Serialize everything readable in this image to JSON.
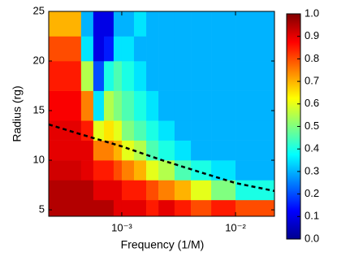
{
  "chart_data": {
    "type": "heatmap",
    "xlabel": "Frequency (1/M)",
    "ylabel": "Radius (rg)",
    "xscale": "log",
    "xlim": [
      0.000228,
      0.022
    ],
    "ylim": [
      4.35,
      25
    ],
    "xticks": [
      {
        "value": 0.001,
        "label": "10⁻³"
      },
      {
        "value": 0.01,
        "label": "10⁻²"
      }
    ],
    "yticks": [
      5,
      10,
      15,
      20,
      25
    ],
    "x_edges": [
      0.000228,
      0.000439,
      0.000562,
      0.000697,
      0.000848,
      0.001,
      0.00128,
      0.00164,
      0.0021,
      0.00291,
      0.00405,
      0.00611,
      0.01,
      0.022
    ],
    "y_edges": [
      4.35,
      6,
      8,
      10,
      12,
      14,
      17,
      20,
      22.5,
      25
    ],
    "z": [
      [
        0.95,
        0.95,
        0.95,
        0.95,
        0.9,
        0.9,
        0.9,
        0.85,
        0.9,
        0.85,
        0.8,
        0.85,
        0.8
      ],
      [
        0.95,
        0.95,
        0.9,
        0.9,
        0.9,
        0.85,
        0.85,
        0.8,
        0.75,
        0.7,
        0.6,
        0.5,
        0.4
      ],
      [
        0.92,
        0.9,
        0.85,
        0.85,
        0.8,
        0.75,
        0.7,
        0.6,
        0.55,
        0.45,
        0.4,
        0.35,
        0.3
      ],
      [
        0.9,
        0.9,
        0.75,
        0.75,
        0.7,
        0.6,
        0.55,
        0.45,
        0.4,
        0.35,
        0.3,
        0.3,
        0.3
      ],
      [
        0.9,
        0.85,
        0.6,
        0.65,
        0.6,
        0.5,
        0.45,
        0.4,
        0.35,
        0.3,
        0.3,
        0.3,
        0.3
      ],
      [
        0.88,
        0.75,
        0.35,
        0.55,
        0.5,
        0.45,
        0.4,
        0.35,
        0.3,
        0.3,
        0.3,
        0.3,
        0.3
      ],
      [
        0.85,
        0.55,
        0.2,
        0.4,
        0.45,
        0.4,
        0.35,
        0.3,
        0.3,
        0.3,
        0.3,
        0.3,
        0.3
      ],
      [
        0.8,
        0.35,
        0.1,
        0.15,
        0.35,
        0.35,
        0.3,
        0.3,
        0.3,
        0.3,
        0.3,
        0.3,
        0.3
      ],
      [
        0.7,
        0.3,
        0.1,
        0.1,
        0.3,
        0.3,
        0.35,
        0.3,
        0.3,
        0.3,
        0.3,
        0.3,
        0.3
      ]
    ],
    "colormap": "jet",
    "clim": [
      0,
      1
    ],
    "cticks": [
      {
        "value": 0,
        "label": "0.0"
      },
      0.1,
      0.2,
      0.3,
      0.4,
      0.5,
      0.6,
      0.7,
      0.8,
      0.9,
      {
        "value": 1,
        "label": "1.0"
      }
    ],
    "lines": [
      {
        "x": [
          0.000228,
          0.000439,
          0.001,
          0.00227,
          0.0052,
          0.01,
          0.022
        ],
        "values": [
          13.6,
          12.6,
          11.4,
          10.0,
          8.7,
          7.7,
          6.9
        ],
        "color": "#000000",
        "dash": true
      }
    ]
  }
}
